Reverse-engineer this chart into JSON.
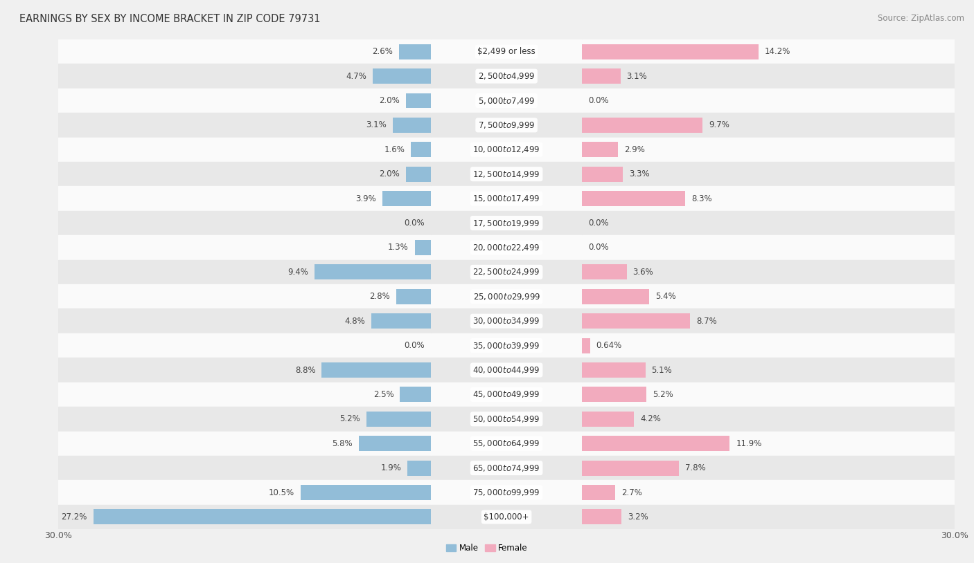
{
  "title": "EARNINGS BY SEX BY INCOME BRACKET IN ZIP CODE 79731",
  "source": "Source: ZipAtlas.com",
  "categories": [
    "$2,499 or less",
    "$2,500 to $4,999",
    "$5,000 to $7,499",
    "$7,500 to $9,999",
    "$10,000 to $12,499",
    "$12,500 to $14,999",
    "$15,000 to $17,499",
    "$17,500 to $19,999",
    "$20,000 to $22,499",
    "$22,500 to $24,999",
    "$25,000 to $29,999",
    "$30,000 to $34,999",
    "$35,000 to $39,999",
    "$40,000 to $44,999",
    "$45,000 to $49,999",
    "$50,000 to $54,999",
    "$55,000 to $64,999",
    "$65,000 to $74,999",
    "$75,000 to $99,999",
    "$100,000+"
  ],
  "male": [
    2.6,
    4.7,
    2.0,
    3.1,
    1.6,
    2.0,
    3.9,
    0.0,
    1.3,
    9.4,
    2.8,
    4.8,
    0.0,
    8.8,
    2.5,
    5.2,
    5.8,
    1.9,
    10.5,
    27.2
  ],
  "female": [
    14.2,
    3.1,
    0.0,
    9.7,
    2.9,
    3.3,
    8.3,
    0.0,
    0.0,
    3.6,
    5.4,
    8.7,
    0.64,
    5.1,
    5.2,
    4.2,
    11.9,
    7.8,
    2.7,
    3.2
  ],
  "male_color": "#92BDD8",
  "female_color": "#F2ABBE",
  "bg_color": "#f0f0f0",
  "row_color_even": "#fafafa",
  "row_color_odd": "#e8e8e8",
  "axis_max": 30.0,
  "title_fontsize": 10.5,
  "source_fontsize": 8.5,
  "label_fontsize": 8.5,
  "category_fontsize": 8.5,
  "tick_fontsize": 9,
  "bar_height": 0.62
}
